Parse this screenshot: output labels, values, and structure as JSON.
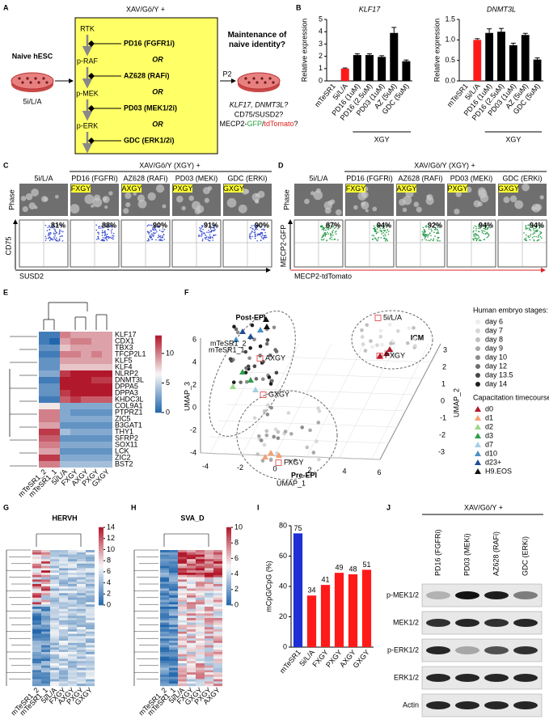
{
  "figure": {
    "A": {
      "letter": "A",
      "header": "XAV/Gö/Y +",
      "start": "Naive hESC",
      "start_medium": "5i/L/A",
      "steps": [
        "RTK",
        "p-RAF",
        "p-MEK",
        "p-ERK"
      ],
      "inhibitors": [
        "PD16 (FGFR1i)",
        "AZ628 (RAFi)",
        "PD03 (MEK1/2i)",
        "GDC (ERK1/2i)"
      ],
      "connector": "OR",
      "passage": "P2",
      "question": "Maintenance of naive identity?",
      "markers": [
        "KLF17, DNMT3L?",
        "CD75/SUSD2?"
      ],
      "reporter": [
        "MECP2-",
        "GFP",
        "/",
        "tdTomato",
        "?"
      ],
      "reporter_colors": [
        "#000000",
        "#22a33a",
        "#000000",
        "#e02020",
        "#000000"
      ]
    },
    "B": {
      "letter": "B"
    },
    "C": {
      "letter": "C",
      "header": "XAV/Gö/Y (XGY) +",
      "columns": [
        "5i/L/A",
        "PD16 (FGFRi)",
        "AZ628 (RAFi)",
        "PD03 (MEKi)",
        "GDC (ERKi)"
      ],
      "tags": [
        "FXGY",
        "AXGY",
        "PXGY",
        "GXGY"
      ],
      "row_label": "Phase",
      "percentages": [
        "81%",
        "88%",
        "90%",
        "91%",
        "90%"
      ],
      "y_axis": "CD75",
      "x_axis": "SUSD2",
      "y_axis_color": "#000000",
      "x_axis_color": "#000000",
      "dot_color": "#3a4fcf"
    },
    "D": {
      "letter": "D",
      "header": "XAV/Gö/Y (XGY) +",
      "columns": [
        "5i/L/A",
        "PD16 (FGFRi)",
        "AZ628 (RAFi)",
        "PD03 (MEKi)",
        "GDC (ERKi)"
      ],
      "tags": [
        "FXGY",
        "AXGY",
        "PXGY",
        "GXGY"
      ],
      "row_label": "Phase",
      "percentages": [
        "87%",
        "94%",
        "92%",
        "94%",
        "94%"
      ],
      "y_axis": "MECP2-GFP",
      "x_axis": "MECP2-tdTomato",
      "y_axis_color": "#22a33a",
      "x_axis_color": "#e02020",
      "dot_color": "#2a9d4a"
    },
    "E": {
      "letter": "E"
    },
    "F": {
      "letter": "F",
      "regions": [
        "Post-EPI",
        "ICM",
        "Pre-EPI"
      ],
      "point_labels": [
        "mTeSR1_2",
        "mTeSR1_1",
        "AXGY",
        "GXGY",
        "FXGY",
        "5i/L/A",
        "PXGY"
      ],
      "x_axis": "UMAP_1",
      "y_axis": "UMAP_3",
      "z_axis": "UMAP_2",
      "x_ticks": [
        -4,
        -2,
        0,
        2,
        4,
        6
      ],
      "y_ticks": [
        6,
        4,
        2,
        0,
        -2,
        -4
      ],
      "z_ticks": [
        3,
        2,
        1,
        0,
        -1,
        -2,
        -3
      ],
      "legend_embryo_title": "Human embryo stages:",
      "embryo_stages": [
        {
          "label": "day 6",
          "color": "#ececec"
        },
        {
          "label": "day 7",
          "color": "#d6d6d6"
        },
        {
          "label": "day 8",
          "color": "#c0c0c0"
        },
        {
          "label": "day 9",
          "color": "#a8a8a8"
        },
        {
          "label": "day 10",
          "color": "#8c8c8c"
        },
        {
          "label": "day 12",
          "color": "#6c6c6c"
        },
        {
          "label": "day 13.5",
          "color": "#474747"
        },
        {
          "label": "day 14",
          "color": "#1e1e1e"
        }
      ],
      "legend_time_title": "Capacitation timecourse:",
      "timecourse": [
        {
          "label": "d0",
          "color": "#b2182b"
        },
        {
          "label": "d1",
          "color": "#f4a072"
        },
        {
          "label": "d2",
          "color": "#9fd68a"
        },
        {
          "label": "d3",
          "color": "#2e9e4a"
        },
        {
          "label": "d7",
          "color": "#a6cfe6"
        },
        {
          "label": "d10",
          "color": "#4a90c2"
        },
        {
          "label": "d23+",
          "color": "#1f4e99"
        },
        {
          "label": "H9.EOS",
          "color": "#111111"
        }
      ]
    },
    "G": {
      "letter": "G",
      "title": "HERVH",
      "samples": [
        "mTeSR1_2",
        "mTeSR1_1",
        "5i/L/A",
        "FXGY",
        "AXGY",
        "PXGY",
        "GXGY"
      ],
      "colorbar_ticks": [
        0,
        2,
        4,
        6,
        8,
        10,
        12,
        14
      ]
    },
    "H": {
      "letter": "H",
      "title": "SVA_D",
      "samples": [
        "mTeSR1_2",
        "mTeSR1_1",
        "5i/L/A",
        "FXGY",
        "GXGY",
        "PXGY",
        "AXGY"
      ],
      "colorbar_ticks": [
        0,
        2,
        4,
        6,
        8,
        10
      ]
    },
    "I": {
      "letter": "I"
    },
    "J": {
      "letter": "J",
      "header": "XAV/Gö/Y +",
      "lanes": [
        "PD16 (FGFRi)",
        "PD03 (MEKi)",
        "AZ628 (RAFi)",
        "GDC (ERKi)"
      ],
      "blots": [
        "p-MEK1/2",
        "MEK1/2",
        "p-ERK1/2",
        "ERK1/2",
        "Actin"
      ]
    }
  },
  "chart_data": [
    {
      "type": "bar",
      "title": "KLF17",
      "ylabel": "Relative expression",
      "categories": [
        "mTeSR1",
        "5i/L/A",
        "PD16 (1uM)",
        "PD16 (2.5uM)",
        "PD03 (1uM)",
        "AZ (5uM)",
        "GDC (5uM)"
      ],
      "values": [
        0,
        1.0,
        2.1,
        2.1,
        1.95,
        3.9,
        1.6
      ],
      "errors": [
        0,
        0.05,
        0.1,
        0.1,
        0.1,
        0.45,
        0.1
      ],
      "colors": [
        "#000000",
        "#ff1a1a",
        "#000000",
        "#000000",
        "#000000",
        "#000000",
        "#000000"
      ],
      "ylim": [
        0,
        5
      ],
      "yticks": [
        0,
        1,
        2,
        3,
        4,
        5
      ],
      "group_label": "XGY"
    },
    {
      "type": "bar",
      "title": "DNMT3L",
      "ylabel": "Relative expression",
      "categories": [
        "mTeSR1",
        "5i/L/A",
        "PD16 (1uM)",
        "PD16 (2.5uM)",
        "PD03 (1uM)",
        "AZ (5uM)",
        "GDC (5uM)"
      ],
      "values": [
        0,
        1.0,
        1.17,
        1.2,
        0.87,
        1.12,
        0.52
      ],
      "errors": [
        0,
        0.03,
        0.1,
        0.08,
        0.05,
        0.04,
        0.04
      ],
      "colors": [
        "#000000",
        "#ff1a1a",
        "#000000",
        "#000000",
        "#000000",
        "#000000",
        "#000000"
      ],
      "ylim": [
        0,
        1.5
      ],
      "yticks": [
        {
          "value": 0,
          "label": "0.0"
        },
        0.5,
        {
          "value": 1,
          "label": "1.0"
        },
        1.5
      ],
      "group_label": "XGY"
    },
    {
      "type": "heatmap",
      "categories": [
        "mTeSR1_2",
        "mTeSR1_1",
        "5i/L/A",
        "FXGY",
        "AXGY",
        "PXGY",
        "GXGY"
      ],
      "rows": [
        "KLF17",
        "CDX1",
        "TBX3",
        "TFCP2L1",
        "KLF5",
        "KLF4",
        "NLRP2",
        "DNMT3L",
        "DPPA5",
        "DPPA3",
        "KHDC3L",
        "COL9A1",
        "PTPRZ1",
        "ZIC5",
        "B3GAT1",
        "THY1",
        "SFRP2",
        "SOX11",
        "LCK",
        "ZIC2",
        "BST2"
      ],
      "values": [
        [
          1,
          1,
          10,
          9,
          9,
          9,
          9
        ],
        [
          1,
          0,
          9,
          10,
          10,
          9,
          9
        ],
        [
          2,
          2,
          8,
          9,
          9,
          9,
          9
        ],
        [
          1,
          1,
          10,
          10,
          9,
          10,
          9
        ],
        [
          2,
          2,
          9,
          9,
          9,
          9,
          9
        ],
        [
          2,
          2,
          8,
          8,
          8,
          8,
          8
        ],
        [
          3,
          3,
          12,
          13,
          13,
          13,
          13
        ],
        [
          1,
          1,
          13,
          13,
          13,
          12,
          12
        ],
        [
          2,
          2,
          13,
          13,
          13,
          13,
          13
        ],
        [
          2,
          2,
          12,
          13,
          13,
          13,
          13
        ],
        [
          1,
          1,
          11,
          12,
          11,
          11,
          11
        ],
        [
          7,
          7,
          3,
          3,
          3,
          3,
          3
        ],
        [
          10,
          10,
          3,
          2,
          2,
          2,
          2
        ],
        [
          10,
          10,
          3,
          3,
          3,
          3,
          3
        ],
        [
          9,
          9,
          2,
          2,
          2,
          2,
          2
        ],
        [
          12,
          12,
          4,
          3,
          3,
          3,
          3
        ],
        [
          11,
          11,
          2,
          2,
          2,
          2,
          2
        ],
        [
          10,
          10,
          3,
          3,
          3,
          3,
          3
        ],
        [
          9,
          9,
          2,
          2,
          2,
          2,
          2
        ],
        [
          12,
          12,
          3,
          3,
          3,
          3,
          3
        ],
        [
          10,
          10,
          4,
          4,
          4,
          4,
          4
        ]
      ],
      "zlim": [
        0,
        13
      ],
      "zticks": [
        0,
        5,
        10
      ],
      "colors": [
        "#2166ac",
        "#f7f7f7",
        "#b2182b"
      ]
    },
    {
      "type": "bar",
      "ylabel": "mCpG/CpG (%)",
      "categories": [
        "mTeSR1",
        "5i/L/A",
        "FXGY",
        "PXGY",
        "AXGY",
        "GXGY"
      ],
      "values": [
        75,
        34,
        41,
        49,
        48,
        51
      ],
      "colors": [
        "#1f2fd6",
        "#ff1a1a",
        "#ff1a1a",
        "#ff1a1a",
        "#ff1a1a",
        "#ff1a1a"
      ],
      "ylim": [
        0,
        80
      ],
      "yticks": [
        0,
        20,
        40,
        60,
        80
      ],
      "show_values": true
    }
  ]
}
